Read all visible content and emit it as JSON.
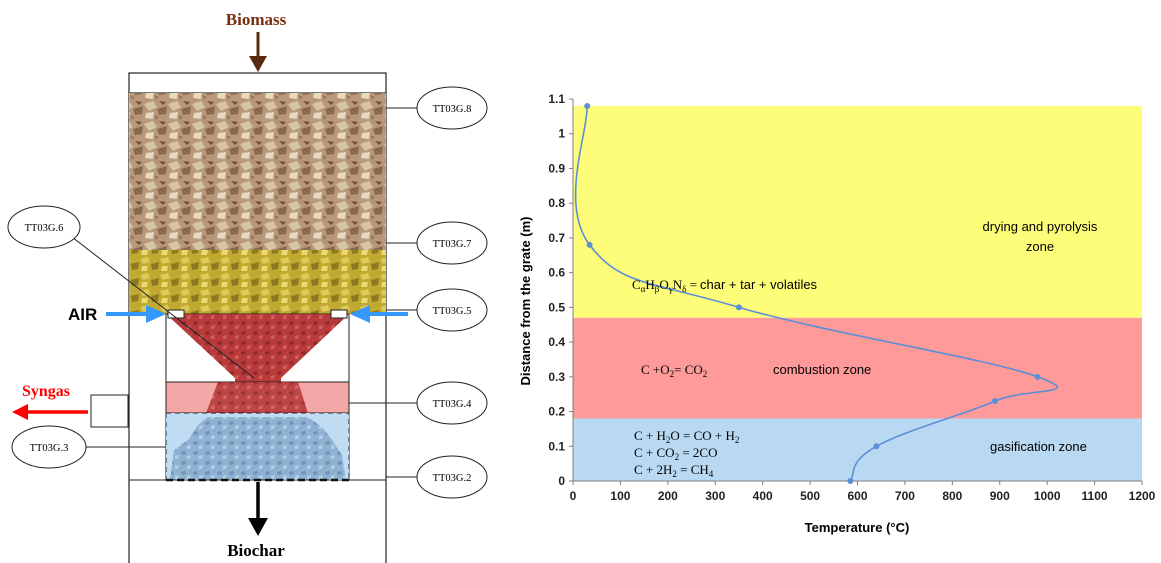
{
  "reactor": {
    "labels": {
      "biomass": "Biomass",
      "air": "AIR",
      "syngas": "Syngas",
      "biochar": "Biochar"
    },
    "sensors": [
      "TT03G.8",
      "TT03G.7",
      "TT03G.6",
      "TT03G.5",
      "TT03G.4",
      "TT03G.3",
      "TT03G.2"
    ],
    "colors": {
      "biomass_label": "#7a2e10",
      "biomass_arrow": "#5a2a10",
      "air_arrow": "#3399ff",
      "syngas": "#ff0000",
      "biochar_arrow": "#000000",
      "wood": "#b99a7a",
      "drying_layer": "#c9b23a",
      "combustion": "#c0393b",
      "gasification": "#8fb4d6"
    }
  },
  "chart_data": {
    "type": "line",
    "xlabel": "Temperature (°C)",
    "ylabel": "Distance from the grate (m)",
    "xlim": [
      0,
      1200
    ],
    "ylim": [
      0,
      1.1
    ],
    "xticks": [
      "0",
      "100",
      "200",
      "300",
      "400",
      "500",
      "600",
      "700",
      "800",
      "900",
      "1000",
      "1100",
      "1200"
    ],
    "yticks": [
      "0",
      "0.1",
      "0.2",
      "0.3",
      "0.4",
      "0.5",
      "0.6",
      "0.7",
      "0.8",
      "0.9",
      "1",
      "1.1"
    ],
    "grid": false,
    "series": [
      {
        "x": [
          585,
          640,
          890,
          980,
          350,
          35,
          30
        ],
        "y": [
          0,
          0.1,
          0.23,
          0.3,
          0.5,
          0.68,
          1.08
        ],
        "color": "#5b8fd6"
      }
    ],
    "zones": [
      {
        "label": "drying and pyrolysis",
        "label2": "zone",
        "y_from": 0.47,
        "y_to": 1.08,
        "color": "#fdfd7a"
      },
      {
        "label": "combustion zone",
        "y_from": 0.18,
        "y_to": 0.47,
        "color": "#ff9a9a"
      },
      {
        "label": "gasification zone",
        "y_from": 0.0,
        "y_to": 0.18,
        "color": "#b9d9f2"
      }
    ],
    "annotations": {
      "pyrolysis_eq_lhs": "CαHβOγNδ =",
      "pyrolysis_eq_rhs": "char + tar + volatiles",
      "combustion_eq": "C +O2= CO2",
      "gasification_eq_1": "C + H2O = CO + H2",
      "gasification_eq_2": "C + CO2 = 2CO",
      "gasification_eq_3": "C + 2H2 = CH4"
    }
  }
}
